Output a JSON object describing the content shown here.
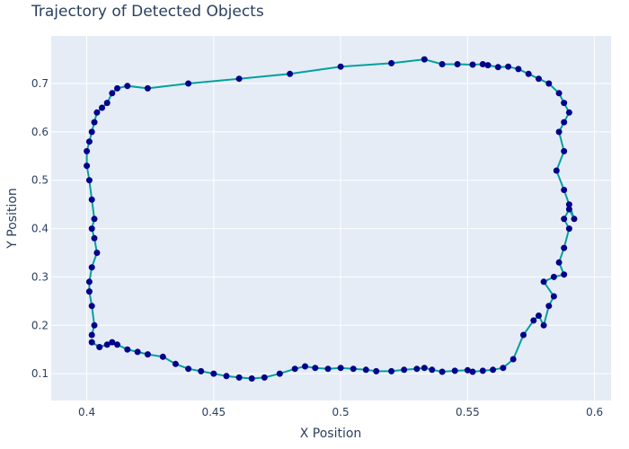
{
  "chart_data": {
    "type": "scatter",
    "mode": "lines+markers",
    "title": "Trajectory of Detected Objects",
    "xlabel": "X Position",
    "ylabel": "Y Position",
    "xlim": [
      0.386,
      0.6065
    ],
    "ylim": [
      0.0445,
      0.7985
    ],
    "xticks": [
      0.4,
      0.45,
      0.5,
      0.55,
      0.6
    ],
    "xtick_labels": [
      "0.4",
      "0.45",
      "0.5",
      "0.55",
      "0.6"
    ],
    "yticks": [
      0.1,
      0.2,
      0.3,
      0.4,
      0.5,
      0.6,
      0.7
    ],
    "ytick_labels": [
      "0.1",
      "0.2",
      "0.3",
      "0.4",
      "0.5",
      "0.6",
      "0.7"
    ],
    "grid": true,
    "background": "#e5ecf6",
    "line_color": "#00a0a0",
    "marker_color": "#00008b",
    "series": [
      {
        "x": [
          0.402,
          0.405,
          0.408,
          0.41,
          0.412,
          0.416,
          0.42,
          0.424,
          0.43,
          0.435,
          0.44,
          0.445,
          0.45,
          0.455,
          0.46,
          0.465,
          0.47,
          0.476,
          0.482,
          0.486,
          0.49,
          0.495,
          0.5,
          0.505,
          0.51,
          0.514,
          0.52,
          0.525,
          0.53,
          0.533,
          0.536,
          0.54,
          0.545,
          0.55,
          0.552,
          0.556,
          0.56,
          0.564,
          0.568,
          0.572,
          0.576,
          0.578,
          0.58,
          0.582,
          0.584,
          0.58,
          0.584,
          0.588,
          0.586,
          0.588,
          0.59,
          0.588,
          0.59,
          0.592,
          0.59,
          0.588,
          0.585,
          0.588,
          0.586,
          0.588,
          0.59,
          0.588,
          0.586,
          0.582,
          0.578,
          0.574,
          0.57,
          0.566,
          0.562,
          0.558,
          0.556,
          0.552,
          0.546,
          0.54,
          0.533,
          0.52,
          0.5,
          0.48,
          0.46,
          0.44,
          0.424,
          0.416,
          0.412,
          0.41,
          0.408,
          0.406,
          0.404,
          0.403,
          0.402,
          0.401,
          0.4,
          0.4,
          0.401,
          0.402,
          0.403,
          0.402,
          0.403,
          0.404,
          0.402,
          0.401,
          0.401,
          0.402,
          0.403,
          0.402
        ],
        "y": [
          0.165,
          0.155,
          0.16,
          0.165,
          0.16,
          0.15,
          0.145,
          0.14,
          0.135,
          0.12,
          0.11,
          0.105,
          0.1,
          0.095,
          0.092,
          0.09,
          0.092,
          0.1,
          0.11,
          0.115,
          0.112,
          0.11,
          0.112,
          0.11,
          0.108,
          0.105,
          0.105,
          0.108,
          0.11,
          0.112,
          0.108,
          0.104,
          0.106,
          0.107,
          0.104,
          0.106,
          0.108,
          0.112,
          0.13,
          0.18,
          0.21,
          0.22,
          0.2,
          0.24,
          0.26,
          0.29,
          0.3,
          0.305,
          0.33,
          0.36,
          0.4,
          0.42,
          0.44,
          0.42,
          0.45,
          0.48,
          0.52,
          0.56,
          0.6,
          0.62,
          0.64,
          0.66,
          0.68,
          0.7,
          0.71,
          0.72,
          0.73,
          0.735,
          0.734,
          0.738,
          0.74,
          0.739,
          0.74,
          0.74,
          0.75,
          0.742,
          0.735,
          0.72,
          0.71,
          0.7,
          0.69,
          0.695,
          0.69,
          0.68,
          0.66,
          0.65,
          0.64,
          0.62,
          0.6,
          0.58,
          0.56,
          0.53,
          0.5,
          0.46,
          0.42,
          0.4,
          0.38,
          0.35,
          0.32,
          0.29,
          0.27,
          0.24,
          0.2,
          0.18
        ]
      }
    ]
  }
}
